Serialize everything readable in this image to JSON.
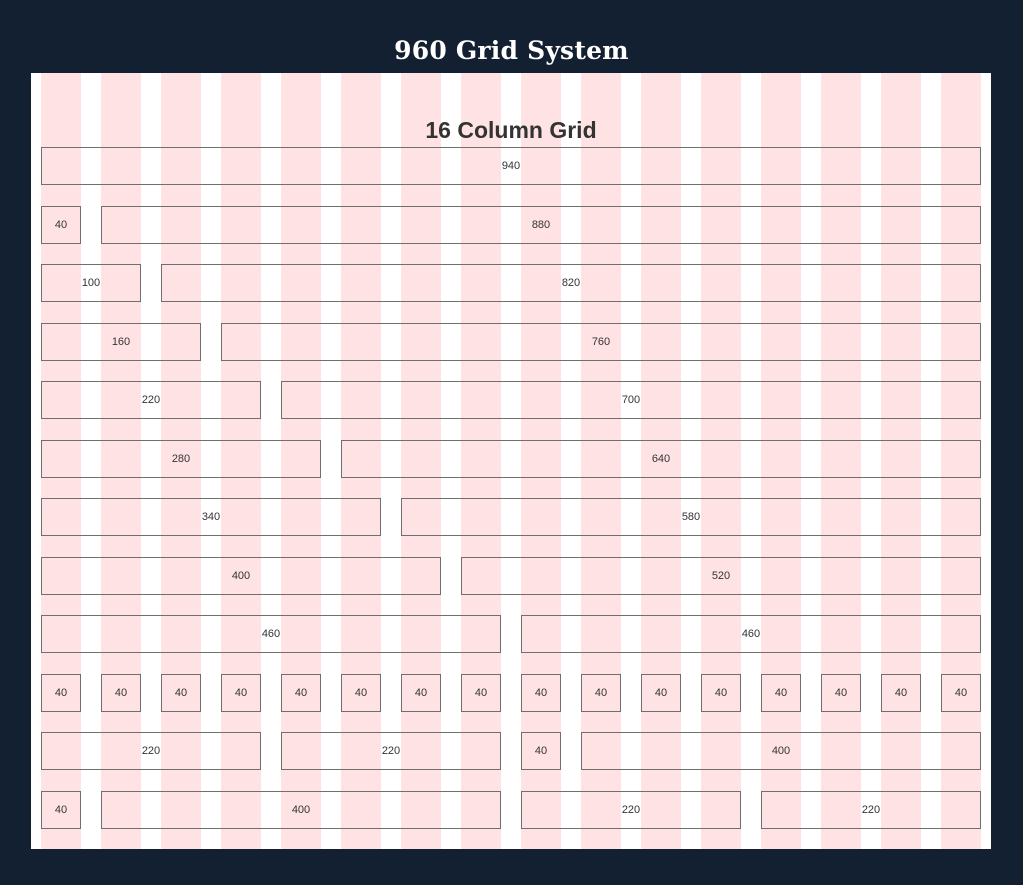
{
  "header": {
    "title": "960 Grid System"
  },
  "grid": {
    "heading": "16 Column Grid",
    "columns": 16,
    "colors": {
      "page_background": "#122031",
      "container_background": "#ffffff",
      "column_stripe": "#ffe3e4",
      "cell_border": "#6f6f6f",
      "text": "#333333"
    },
    "rows": [
      {
        "cells": [
          {
            "span": 16,
            "label": "940"
          }
        ]
      },
      {
        "cells": [
          {
            "span": 1,
            "label": "40"
          },
          {
            "span": 15,
            "label": "880"
          }
        ]
      },
      {
        "cells": [
          {
            "span": 2,
            "label": "100"
          },
          {
            "span": 14,
            "label": "820"
          }
        ]
      },
      {
        "cells": [
          {
            "span": 3,
            "label": "160"
          },
          {
            "span": 13,
            "label": "760"
          }
        ]
      },
      {
        "cells": [
          {
            "span": 4,
            "label": "220"
          },
          {
            "span": 12,
            "label": "700"
          }
        ]
      },
      {
        "cells": [
          {
            "span": 5,
            "label": "280"
          },
          {
            "span": 11,
            "label": "640"
          }
        ]
      },
      {
        "cells": [
          {
            "span": 6,
            "label": "340"
          },
          {
            "span": 10,
            "label": "580"
          }
        ]
      },
      {
        "cells": [
          {
            "span": 7,
            "label": "400"
          },
          {
            "span": 9,
            "label": "520"
          }
        ]
      },
      {
        "cells": [
          {
            "span": 8,
            "label": "460"
          },
          {
            "span": 8,
            "label": "460"
          }
        ]
      },
      {
        "cells": [
          {
            "span": 1,
            "label": "40"
          },
          {
            "span": 1,
            "label": "40"
          },
          {
            "span": 1,
            "label": "40"
          },
          {
            "span": 1,
            "label": "40"
          },
          {
            "span": 1,
            "label": "40"
          },
          {
            "span": 1,
            "label": "40"
          },
          {
            "span": 1,
            "label": "40"
          },
          {
            "span": 1,
            "label": "40"
          },
          {
            "span": 1,
            "label": "40"
          },
          {
            "span": 1,
            "label": "40"
          },
          {
            "span": 1,
            "label": "40"
          },
          {
            "span": 1,
            "label": "40"
          },
          {
            "span": 1,
            "label": "40"
          },
          {
            "span": 1,
            "label": "40"
          },
          {
            "span": 1,
            "label": "40"
          },
          {
            "span": 1,
            "label": "40"
          }
        ]
      },
      {
        "cells": [
          {
            "span": 4,
            "label": "220"
          },
          {
            "span": 4,
            "label": "220"
          },
          {
            "span": 1,
            "label": "40"
          },
          {
            "span": 7,
            "label": "400"
          }
        ]
      },
      {
        "cells": [
          {
            "span": 1,
            "label": "40"
          },
          {
            "span": 7,
            "label": "400"
          },
          {
            "span": 4,
            "label": "220"
          },
          {
            "span": 4,
            "label": "220"
          }
        ]
      }
    ]
  }
}
